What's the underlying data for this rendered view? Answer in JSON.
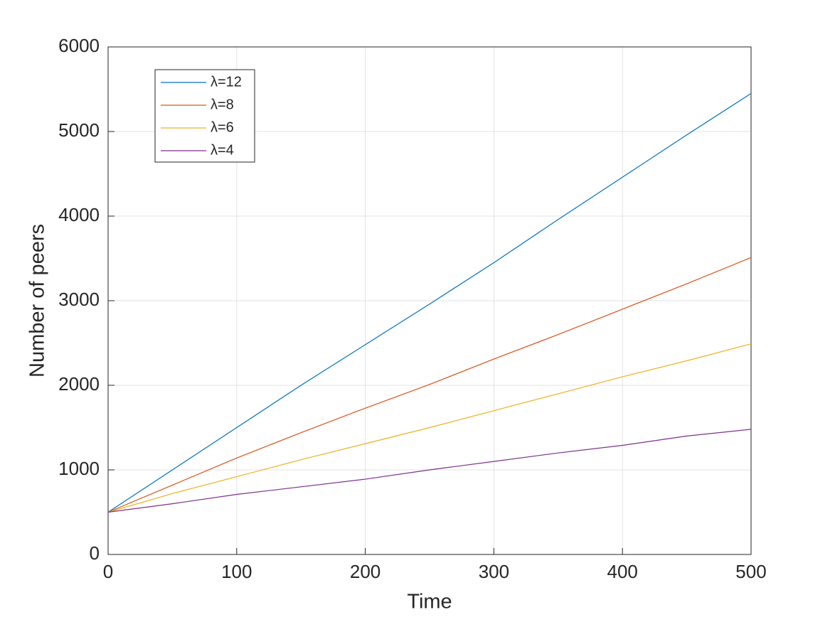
{
  "chart_data": {
    "type": "line",
    "xlabel": "Time",
    "ylabel": "Number of peers",
    "x": [
      0,
      50,
      100,
      150,
      200,
      250,
      300,
      350,
      400,
      450,
      500
    ],
    "series": [
      {
        "name": "λ=12",
        "color": "#0072BD",
        "values": [
          500,
          1000,
          1500,
          2000,
          2480,
          2960,
          3450,
          3960,
          4460,
          4960,
          5450
        ]
      },
      {
        "name": "λ=8",
        "color": "#D95319",
        "values": [
          500,
          820,
          1140,
          1440,
          1730,
          2010,
          2310,
          2600,
          2900,
          3200,
          3510
        ]
      },
      {
        "name": "λ=6",
        "color": "#EDB120",
        "values": [
          500,
          720,
          920,
          1120,
          1310,
          1500,
          1700,
          1900,
          2100,
          2290,
          2490
        ]
      },
      {
        "name": "λ=4",
        "color": "#7E2F8E",
        "values": [
          500,
          600,
          710,
          800,
          890,
          1000,
          1100,
          1200,
          1290,
          1400,
          1480
        ]
      }
    ],
    "xlim": [
      0,
      500
    ],
    "xticks": [
      0,
      100,
      200,
      300,
      400,
      500
    ],
    "ylim": [
      0,
      6000
    ],
    "yticks": [
      0,
      1000,
      2000,
      3000,
      4000,
      5000,
      6000
    ],
    "grid": true,
    "legend_location": "northwest"
  }
}
